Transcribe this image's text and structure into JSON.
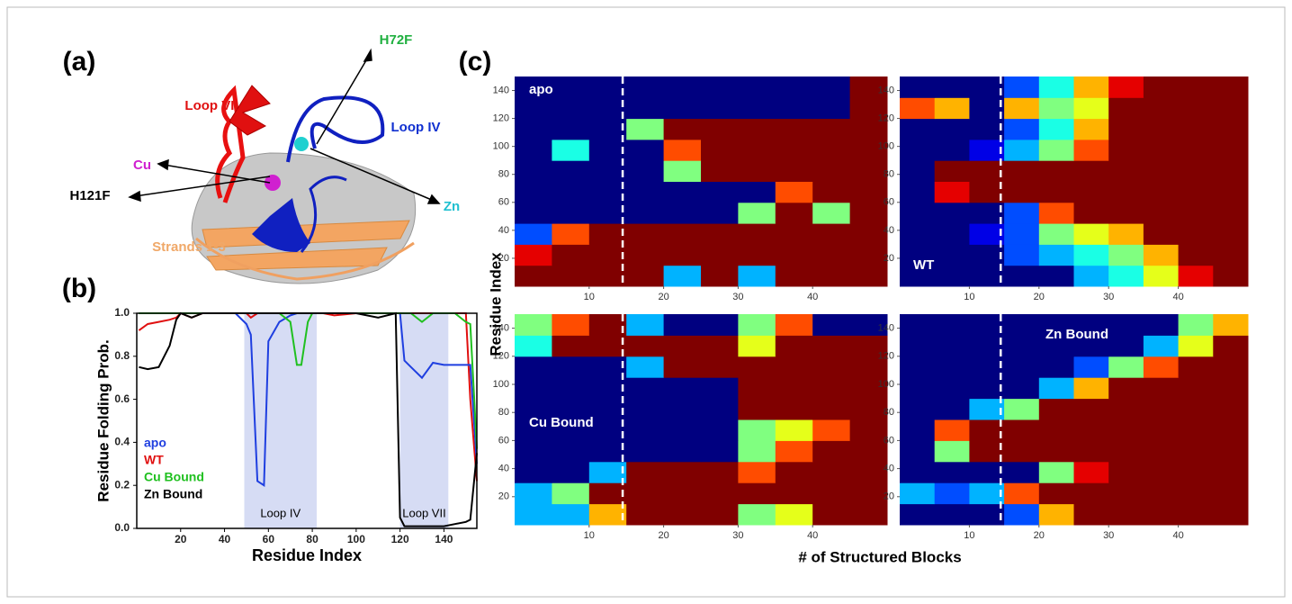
{
  "panel_labels": [
    "(a)",
    "(b)",
    "(c)"
  ],
  "structure_labels": [
    "Loop VII",
    "H72F",
    "Loop IV",
    "Cu",
    "Zn",
    "H121F",
    "Strands 1-3"
  ],
  "heatmap_axes": {
    "xlabel": "# of Structured Blocks",
    "ylabel": "Residue Index"
  },
  "chart_data": [
    {
      "type": "line",
      "xlabel": "Residue Index",
      "ylabel": "Residue Folding Prob.",
      "xlim": [
        0,
        155
      ],
      "ylim": [
        0,
        1
      ],
      "xticks": [
        20,
        40,
        60,
        80,
        100,
        120,
        140
      ],
      "yticks": [
        {
          "value": 0,
          "label": "0.0"
        },
        {
          "value": 0.2,
          "label": "0.2"
        },
        {
          "value": 0.4,
          "label": "0.4"
        },
        {
          "value": 0.6,
          "label": "0.6"
        },
        {
          "value": 0.8,
          "label": "0.8"
        },
        {
          "value": 1,
          "label": "1.0"
        }
      ],
      "highlights": [
        {
          "label": "Loop IV",
          "range": [
            49,
            82
          ]
        },
        {
          "label": "Loop VII",
          "range": [
            120,
            142
          ]
        }
      ],
      "x": [
        1,
        5,
        10,
        15,
        18,
        20,
        25,
        30,
        35,
        40,
        45,
        50,
        52,
        55,
        58,
        60,
        65,
        70,
        73,
        75,
        78,
        80,
        85,
        90,
        100,
        110,
        118,
        120,
        122,
        125,
        130,
        135,
        140,
        145,
        150,
        152,
        155
      ],
      "series": [
        {
          "name": "apo",
          "color": "#1f3fe0",
          "values": [
            1,
            1,
            1,
            1,
            1,
            1,
            1,
            1,
            1,
            1,
            1,
            0.95,
            0.9,
            0.22,
            0.2,
            0.87,
            0.96,
            0.99,
            1,
            1,
            1,
            1,
            1,
            1,
            1,
            1,
            1,
            1,
            0.78,
            0.75,
            0.7,
            0.77,
            0.76,
            0.76,
            0.76,
            0.76,
            0.3
          ]
        },
        {
          "name": "WT",
          "color": "#e01010",
          "values": [
            0.92,
            0.95,
            0.96,
            0.97,
            0.98,
            1,
            0.98,
            1,
            1,
            1,
            1,
            1,
            0.98,
            1,
            1,
            1,
            1,
            1,
            1,
            1,
            1,
            1,
            1,
            0.99,
            1,
            1,
            1,
            1,
            1,
            1,
            1,
            1,
            1,
            1,
            1,
            0.6,
            0.22
          ]
        },
        {
          "name": "Cu Bound",
          "color": "#20c020",
          "values": [
            1,
            1,
            1,
            1,
            1,
            1,
            1,
            1,
            1,
            1,
            1,
            1,
            1,
            1,
            1,
            1,
            1,
            0.96,
            0.76,
            0.76,
            0.96,
            1,
            1,
            1,
            1,
            1,
            1,
            1,
            1,
            1,
            0.96,
            1,
            1,
            1,
            0.96,
            0.95,
            0.37
          ]
        },
        {
          "name": "Zn Bound",
          "color": "#000000",
          "values": [
            0.75,
            0.74,
            0.75,
            0.85,
            0.97,
            1,
            0.98,
            1,
            1,
            1,
            1,
            1,
            1,
            1,
            1,
            1,
            1,
            1,
            1,
            1,
            1,
            1,
            1,
            1,
            1,
            0.98,
            1,
            0.05,
            0.01,
            0.01,
            0.01,
            0.01,
            0.01,
            0.02,
            0.03,
            0.04,
            0.35
          ]
        }
      ]
    },
    {
      "type": "heatmap",
      "title": "apo",
      "xlim": [
        0,
        50
      ],
      "ylim": [
        0,
        150
      ],
      "xticks": [
        10,
        20,
        30,
        40
      ],
      "yticks": [
        20,
        40,
        60,
        80,
        100,
        120,
        140
      ],
      "vline": 14.5,
      "x_bins": [
        0,
        5,
        10,
        15,
        20,
        25,
        30,
        35,
        40,
        45,
        50
      ],
      "y_bins": [
        0,
        15,
        30,
        45,
        60,
        75,
        90,
        105,
        120,
        135,
        150
      ],
      "z": [
        [
          1,
          1,
          1,
          1,
          0.3,
          1,
          0.3,
          1,
          1,
          1
        ],
        [
          0.9,
          1,
          1,
          1,
          1,
          1,
          1,
          1,
          1,
          1
        ],
        [
          0.2,
          0.8,
          1,
          1,
          1,
          1,
          1,
          1,
          1,
          1
        ],
        [
          0,
          0,
          0,
          0,
          0,
          0,
          0.5,
          1,
          0.5,
          1
        ],
        [
          0,
          0,
          0,
          0,
          0,
          0,
          0,
          0.8,
          1,
          1
        ],
        [
          0,
          0,
          0,
          0,
          0.5,
          1,
          1,
          1,
          1,
          1
        ],
        [
          0,
          0.4,
          0,
          0,
          0.8,
          1,
          1,
          1,
          1,
          1
        ],
        [
          0,
          0,
          0,
          0.5,
          1,
          1,
          1,
          1,
          1,
          1
        ],
        [
          0,
          0,
          0,
          0,
          0,
          0,
          0,
          0,
          0,
          1
        ],
        [
          0,
          0,
          0,
          0,
          0,
          0,
          0,
          0,
          0,
          1
        ]
      ]
    },
    {
      "type": "heatmap",
      "title": "WT",
      "xlim": [
        0,
        50
      ],
      "ylim": [
        0,
        150
      ],
      "xticks": [
        10,
        20,
        30,
        40
      ],
      "yticks": [
        20,
        40,
        60,
        80,
        100,
        120,
        140
      ],
      "vline": 14.5,
      "x_bins": [
        0,
        5,
        10,
        15,
        20,
        25,
        30,
        35,
        40,
        45,
        50
      ],
      "y_bins": [
        0,
        15,
        30,
        45,
        60,
        75,
        90,
        105,
        120,
        135,
        150
      ],
      "z": [
        [
          0,
          0,
          0,
          0,
          0,
          0.3,
          0.4,
          0.6,
          0.9,
          1
        ],
        [
          0,
          0,
          0,
          0.2,
          0.3,
          0.4,
          0.5,
          0.7,
          1,
          1
        ],
        [
          0,
          0,
          0.1,
          0.2,
          0.5,
          0.6,
          0.7,
          1,
          1,
          1
        ],
        [
          0,
          0,
          0,
          0.2,
          0.8,
          1,
          1,
          1,
          1,
          1
        ],
        [
          0,
          0.9,
          1,
          1,
          1,
          1,
          1,
          1,
          1,
          1
        ],
        [
          0,
          1,
          1,
          1,
          1,
          1,
          1,
          1,
          1,
          1
        ],
        [
          0,
          0,
          0.1,
          0.3,
          0.5,
          0.8,
          1,
          1,
          1,
          1
        ],
        [
          0,
          0,
          0,
          0.2,
          0.4,
          0.7,
          1,
          1,
          1,
          1
        ],
        [
          0.8,
          0.7,
          0,
          0.7,
          0.5,
          0.6,
          1,
          1,
          1,
          1
        ],
        [
          0,
          0,
          0,
          0.2,
          0.4,
          0.7,
          0.9,
          1,
          1,
          1
        ]
      ]
    },
    {
      "type": "heatmap",
      "title": "Cu Bound",
      "xlim": [
        0,
        50
      ],
      "ylim": [
        0,
        150
      ],
      "xticks": [
        10,
        20,
        30,
        40
      ],
      "yticks": [
        20,
        40,
        60,
        80,
        100,
        120,
        140
      ],
      "vline": 14.5,
      "x_bins": [
        0,
        5,
        10,
        15,
        20,
        25,
        30,
        35,
        40,
        45,
        50
      ],
      "y_bins": [
        0,
        15,
        30,
        45,
        60,
        75,
        90,
        105,
        120,
        135,
        150
      ],
      "z": [
        [
          0.3,
          0.3,
          0.7,
          1,
          1,
          1,
          0.5,
          0.6,
          1,
          1
        ],
        [
          0.3,
          0.5,
          1,
          1,
          1,
          1,
          1,
          1,
          1,
          1
        ],
        [
          0,
          0,
          0.3,
          1,
          1,
          1,
          0.8,
          1,
          1,
          1
        ],
        [
          0,
          0,
          0,
          0,
          0,
          0,
          0.5,
          0.8,
          1,
          1
        ],
        [
          0,
          0,
          0,
          0,
          0,
          0,
          0.5,
          0.6,
          0.8,
          1
        ],
        [
          0,
          0,
          0,
          0,
          0,
          0,
          1,
          1,
          1,
          1
        ],
        [
          0,
          0,
          0,
          0,
          0,
          0,
          1,
          1,
          1,
          1
        ],
        [
          0,
          0,
          0,
          0.3,
          1,
          1,
          1,
          1,
          1,
          1
        ],
        [
          0.4,
          1,
          1,
          1,
          1,
          1,
          0.6,
          1,
          1,
          1
        ],
        [
          0.5,
          0.8,
          1,
          0.3,
          0,
          0,
          0.5,
          0.8,
          0,
          0
        ]
      ]
    },
    {
      "type": "heatmap",
      "title": "Zn Bound",
      "xlim": [
        0,
        50
      ],
      "ylim": [
        0,
        150
      ],
      "xticks": [
        10,
        20,
        30,
        40
      ],
      "yticks": [
        20,
        40,
        60,
        80,
        100,
        120,
        140
      ],
      "vline": 14.5,
      "x_bins": [
        0,
        5,
        10,
        15,
        20,
        25,
        30,
        35,
        40,
        45,
        50
      ],
      "y_bins": [
        0,
        15,
        30,
        45,
        60,
        75,
        90,
        105,
        120,
        135,
        150
      ],
      "z": [
        [
          0,
          0,
          0,
          0.2,
          0.7,
          1,
          1,
          1,
          1,
          1
        ],
        [
          0.3,
          0.2,
          0.3,
          0.8,
          1,
          1,
          1,
          1,
          1,
          1
        ],
        [
          0,
          0,
          0,
          0,
          0.5,
          0.9,
          1,
          1,
          1,
          1
        ],
        [
          0,
          0.5,
          1,
          1,
          1,
          1,
          1,
          1,
          1,
          1
        ],
        [
          0,
          0.8,
          1,
          1,
          1,
          1,
          1,
          1,
          1,
          1
        ],
        [
          0,
          0,
          0.3,
          0.5,
          1,
          1,
          1,
          1,
          1,
          1
        ],
        [
          0,
          0,
          0,
          0,
          0.3,
          0.7,
          1,
          1,
          1,
          1
        ],
        [
          0,
          0,
          0,
          0,
          0,
          0.2,
          0.5,
          0.8,
          1,
          1
        ],
        [
          0,
          0,
          0,
          0,
          0,
          0,
          0,
          0.3,
          0.6,
          1
        ],
        [
          0,
          0,
          0,
          0,
          0,
          0,
          0,
          0,
          0.5,
          0.7
        ]
      ]
    }
  ]
}
